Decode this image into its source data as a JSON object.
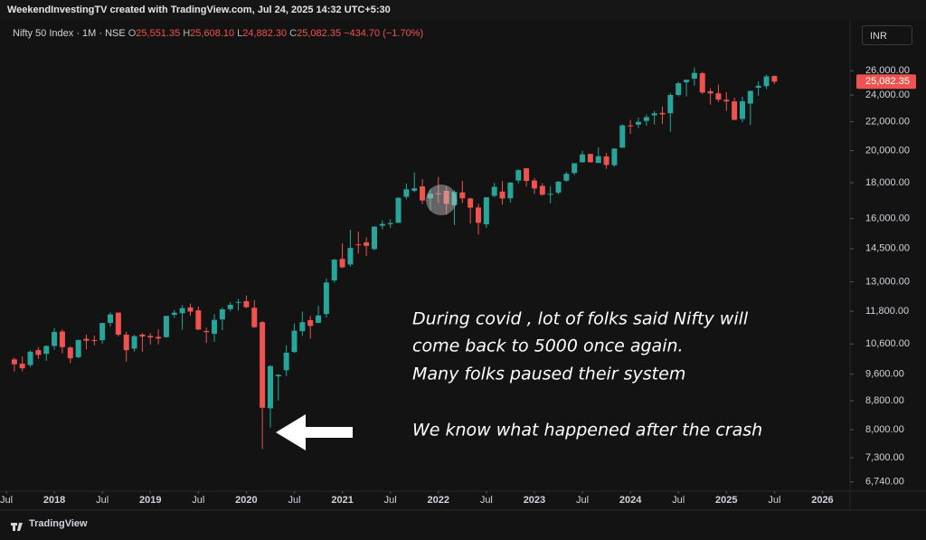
{
  "caption": "WeekendInvestingTV created with TradingView.com, Jul 24, 2025 14:32 UTC+5:30",
  "footer": "TradingView",
  "currency": "INR",
  "chart_data": {
    "type": "candlestick",
    "symbol": "Nifty 50 Index · 1M · NSE",
    "header_fields": [
      {
        "key": "O",
        "value": "25,551.35"
      },
      {
        "key": "H",
        "value": "25,608.10"
      },
      {
        "key": "L",
        "value": "24,882.30"
      },
      {
        "key": "C",
        "value": "25,082.35"
      }
    ],
    "change": "−434.70 (−1.70%)",
    "last_price_label": "25,082.35",
    "log_scale": true,
    "up_color": "#26a69a",
    "down_color": "#ef5350",
    "annotations": [
      "During covid , lot of folks said Nifty will",
      "come back to 5000 once again.",
      "Many folks paused their system",
      "We know what happened after the crash"
    ],
    "xlim": [
      "2017-07",
      "2026-04"
    ],
    "xticks": [
      {
        "value": "2017-07",
        "label": "Jul"
      },
      {
        "value": "2018-01",
        "label": "2018"
      },
      {
        "value": "2018-07",
        "label": "Jul"
      },
      {
        "value": "2019-01",
        "label": "2019"
      },
      {
        "value": "2019-07",
        "label": "Jul"
      },
      {
        "value": "2020-01",
        "label": "2020"
      },
      {
        "value": "2020-07",
        "label": "Jul"
      },
      {
        "value": "2021-01",
        "label": "2021"
      },
      {
        "value": "2021-07",
        "label": "Jul"
      },
      {
        "value": "2022-01",
        "label": "2022"
      },
      {
        "value": "2022-07",
        "label": "Jul"
      },
      {
        "value": "2023-01",
        "label": "2023"
      },
      {
        "value": "2023-07",
        "label": "Jul"
      },
      {
        "value": "2024-01",
        "label": "2024"
      },
      {
        "value": "2024-07",
        "label": "Jul"
      },
      {
        "value": "2025-01",
        "label": "2025"
      },
      {
        "value": "2025-07",
        "label": "Jul"
      },
      {
        "value": "2026-01",
        "label": "2026"
      }
    ],
    "ylim": [
      6500,
      30000
    ],
    "yticks": [
      {
        "value": 26000,
        "label": "26,000.00"
      },
      {
        "value": 24000,
        "label": "24,000.00"
      },
      {
        "value": 22000,
        "label": "22,000.00"
      },
      {
        "value": 20000,
        "label": "20,000.00"
      },
      {
        "value": 18000,
        "label": "18,000.00"
      },
      {
        "value": 16000,
        "label": "16,000.00"
      },
      {
        "value": 14500,
        "label": "14,500.00"
      },
      {
        "value": 13000,
        "label": "13,000.00"
      },
      {
        "value": 11800,
        "label": "11,800.00"
      },
      {
        "value": 10600,
        "label": "10,600.00"
      },
      {
        "value": 9600,
        "label": "9,600.00"
      },
      {
        "value": 8800,
        "label": "8,800.00"
      },
      {
        "value": 8000,
        "label": "8,000.00"
      },
      {
        "value": 7300,
        "label": "7,300.00"
      },
      {
        "value": 6740,
        "label": "6,740.00"
      }
    ],
    "x": [
      "2017-08",
      "2017-09",
      "2017-10",
      "2017-11",
      "2017-12",
      "2018-01",
      "2018-02",
      "2018-03",
      "2018-04",
      "2018-05",
      "2018-06",
      "2018-07",
      "2018-08",
      "2018-09",
      "2018-10",
      "2018-11",
      "2018-12",
      "2019-01",
      "2019-02",
      "2019-03",
      "2019-04",
      "2019-05",
      "2019-06",
      "2019-07",
      "2019-08",
      "2019-09",
      "2019-10",
      "2019-11",
      "2019-12",
      "2020-01",
      "2020-02",
      "2020-03",
      "2020-04",
      "2020-05",
      "2020-06",
      "2020-07",
      "2020-08",
      "2020-09",
      "2020-10",
      "2020-11",
      "2020-12",
      "2021-01",
      "2021-02",
      "2021-03",
      "2021-04",
      "2021-05",
      "2021-06",
      "2021-07",
      "2021-08",
      "2021-09",
      "2021-10",
      "2021-11",
      "2021-12",
      "2022-01",
      "2022-02",
      "2022-03",
      "2022-04",
      "2022-05",
      "2022-06",
      "2022-07",
      "2022-08",
      "2022-09",
      "2022-10",
      "2022-11",
      "2022-12",
      "2023-01",
      "2023-02",
      "2023-03",
      "2023-04",
      "2023-05",
      "2023-06",
      "2023-07",
      "2023-08",
      "2023-09",
      "2023-10",
      "2023-11",
      "2023-12",
      "2024-01",
      "2024-02",
      "2024-03",
      "2024-04",
      "2024-05",
      "2024-06",
      "2024-07",
      "2024-08",
      "2024-09",
      "2024-10",
      "2024-11",
      "2024-12",
      "2025-01",
      "2025-02",
      "2025-03",
      "2025-04",
      "2025-05",
      "2025-06",
      "2025-07"
    ],
    "open": [
      10077,
      9937,
      9893,
      10390,
      10263,
      10532,
      11045,
      10479,
      10151,
      10783,
      10738,
      10732,
      11360,
      11751,
      10930,
      10441,
      10931,
      10882,
      10851,
      10842,
      11665,
      11726,
      11953,
      11839,
      11061,
      10961,
      11491,
      11886,
      12137,
      12202,
      11940,
      11388,
      8584,
      9533,
      9726,
      10324,
      11057,
      11464,
      11364,
      11697,
      13062,
      14019,
      13759,
      14702,
      14798,
      14481,
      15629,
      15704,
      15777,
      17185,
      17532,
      17783,
      17104,
      17388,
      17529,
      16723,
      17437,
      17094,
      16594,
      15704,
      17243,
      17485,
      17102,
      18131,
      18871,
      18131,
      17811,
      17360,
      17427,
      18124,
      18579,
      19246,
      19784,
      19205,
      19622,
      19064,
      20195,
      21727,
      21780,
      22048,
      22456,
      22637,
      22614,
      24009,
      25030,
      25333,
      25789,
      24304,
      24141,
      23637,
      23509,
      22195,
      23341,
      24590,
      24716,
      25551.35
    ],
    "high": [
      10138,
      10179,
      10385,
      10490,
      10552,
      11172,
      11118,
      10526,
      10760,
      10930,
      10894,
      11366,
      11760,
      11752,
      11035,
      10922,
      10985,
      10987,
      11118,
      11630,
      11857,
      12041,
      12104,
      11982,
      11182,
      11695,
      11946,
      12159,
      12294,
      12430,
      12247,
      11434,
      9890,
      9598,
      10553,
      11341,
      11794,
      11619,
      12026,
      13146,
      14024,
      14754,
      15432,
      15337,
      15045,
      15606,
      15916,
      15962,
      17153,
      17948,
      18604,
      18210,
      17640,
      18351,
      17795,
      17559,
      18115,
      17132,
      16794,
      17172,
      17992,
      18096,
      18022,
      18816,
      18888,
      18266,
      17973,
      17800,
      18089,
      18662,
      19201,
      19991,
      19796,
      20222,
      19849,
      20158,
      21801,
      22124,
      22297,
      22526,
      22783,
      23111,
      24174,
      25078,
      25268,
      26277,
      25908,
      24538,
      24858,
      24226,
      23807,
      23869,
      24365,
      25116,
      25669,
      25608.1
    ],
    "low": [
      9685,
      9687,
      9831,
      10094,
      10033,
      10405,
      10277,
      9952,
      10111,
      10418,
      10551,
      10605,
      11234,
      10866,
      10005,
      10342,
      10334,
      10584,
      10586,
      10817,
      11549,
      11109,
      11625,
      11086,
      10637,
      10670,
      11090,
      11802,
      11833,
      11929,
      11175,
      7511,
      8056,
      8807,
      9544,
      10299,
      10882,
      10790,
      11347,
      11557,
      12963,
      13597,
      13662,
      14265,
      14152,
      14417,
      15451,
      15514,
      15835,
      17055,
      17452,
      16782,
      16410,
      16837,
      16203,
      15671,
      16825,
      15735,
      15183,
      15512,
      17154,
      16748,
      16856,
      17960,
      17774,
      17353,
      17255,
      16828,
      17312,
      18042,
      18464,
      19234,
      19223,
      19255,
      18837,
      18973,
      20184,
      21137,
      21530,
      21710,
      21777,
      21821,
      21282,
      23893,
      23894,
      24753,
      24073,
      23263,
      23460,
      22787,
      22105,
      21965,
      21744,
      23936,
      24474,
      24882.3
    ],
    "close": [
      9918,
      9789,
      10335,
      10227,
      10531,
      11028,
      10493,
      10114,
      10739,
      10715,
      10714,
      11357,
      11681,
      10930,
      10387,
      10877,
      10863,
      10831,
      10793,
      11624,
      11748,
      11923,
      11789,
      11118,
      11023,
      11474,
      11877,
      12056,
      12168,
      11962,
      11202,
      8598,
      9860,
      9580,
      10302,
      11073,
      11388,
      11248,
      11642,
      12969,
      13982,
      13635,
      14529,
      14691,
      14631,
      15583,
      15722,
      15763,
      17132,
      17618,
      17672,
      16983,
      17354,
      17340,
      16794,
      17465,
      17103,
      16585,
      15780,
      17158,
      17759,
      17094,
      18012,
      18758,
      18105,
      17662,
      17304,
      17360,
      18065,
      18534,
      19189,
      19754,
      19254,
      19638,
      19080,
      20133,
      21731,
      21726,
      21983,
      22327,
      22605,
      22531,
      24011,
      24951,
      25236,
      25811,
      24205,
      24131,
      23645,
      23509,
      22125,
      23519,
      24334,
      24751,
      25517,
      25082.35
    ]
  }
}
